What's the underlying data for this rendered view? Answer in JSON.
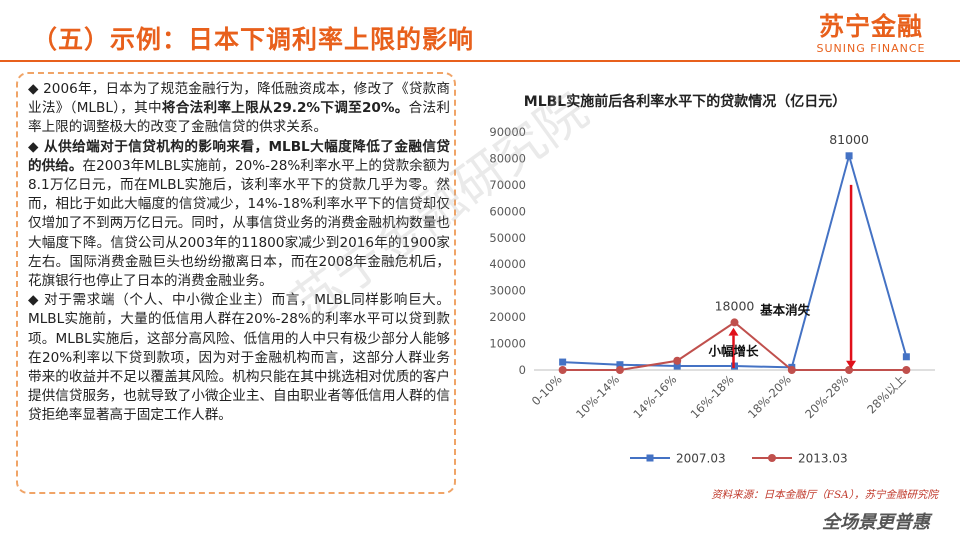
{
  "title": "（五）示例：日本下调利率上限的影响",
  "logo": {
    "cn": "苏宁金融",
    "en": "SUNING FINANCE"
  },
  "body": {
    "p1_a": "◆ 2006年，日本为了规范金融行为，降低融资成本，修改了《贷款商业法》（MLBL），其中",
    "p1_b": "将合法利率上限从29.2%下调至20%。",
    "p1_c": "合法利率上限的调整极大的改变了金融信贷的供求关系。",
    "p2_a": "◆ 从供给端对于信贷机构的影响来看，MLBL大幅度降低了金融信贷的供给。",
    "p2_b": "在2003年MLBL实施前，20%-28%利率水平上的贷款余额为8.1万亿日元，而在MLBL实施后，该利率水平下的贷款几乎为零。然而，相比于如此大幅度的信贷减少，14%-18%利率水平下的信贷却仅仅增加了不到两万亿日元。同时，从事信贷业务的消费金融机构数量也大幅度下降。信贷公司从2003年的11800家减少到2016年的1900家左右。国际消费金融巨头也纷纷撤离日本，而在2008年金融危机后，花旗银行也停止了日本的消费金融业务。",
    "p3": "◆ 对于需求端（个人、中小微企业主）而言，MLBL同样影响巨大。MLBL实施前，大量的低信用人群在20%-28%的利率水平可以贷到款项。MLBL实施后，这部分高风险、低信用的人中只有极少部分人能够在20%利率以下贷到款项，因为对于金融机构而言，这部分人群业务带来的收益并不足以覆盖其风险。机构只能在其中挑选相对优质的客户提供信贷服务，也就导致了小微企业主、自由职业者等低信用人群的信贷拒绝率显著高于固定工作人群。"
  },
  "source": "资料来源：日本金融厅（FSA），苏宁金融研究院",
  "slogan": "全场景更普惠",
  "watermark": "苏宁金融研究院",
  "colors": {
    "accent": "#e8601c",
    "series_2007": "#4472c4",
    "series_2013": "#c0504d",
    "arrow": "#e0101a"
  },
  "chart_data": {
    "type": "line",
    "title": "MLBL实施前后各利率水平下的贷款情况（亿日元）",
    "categories": [
      "0-10%",
      "10%-14%",
      "14%-16%",
      "16%-18%",
      "18%-20%",
      "20%-28%",
      "28%以上"
    ],
    "series": [
      {
        "name": "2007.03",
        "values": [
          3000,
          2000,
          1500,
          1500,
          1000,
          81000,
          5000
        ]
      },
      {
        "name": "2013.03",
        "values": [
          0,
          0,
          3500,
          18000,
          0,
          0,
          0
        ]
      }
    ],
    "ylim": [
      0,
      90000
    ],
    "yticks": [
      0,
      10000,
      20000,
      30000,
      40000,
      50000,
      60000,
      70000,
      80000,
      90000
    ],
    "data_labels": [
      {
        "category": "16%-18%",
        "series": "2013.03",
        "text": "18000"
      },
      {
        "category": "20%-28%",
        "series": "2007.03",
        "text": "81000"
      }
    ],
    "annotations": [
      {
        "text": "小幅增长",
        "category": "16%-18%",
        "direction": "up"
      },
      {
        "text": "基本消失",
        "category": "20%-28%",
        "direction": "down"
      }
    ],
    "legend_position": "bottom",
    "grid": false
  }
}
